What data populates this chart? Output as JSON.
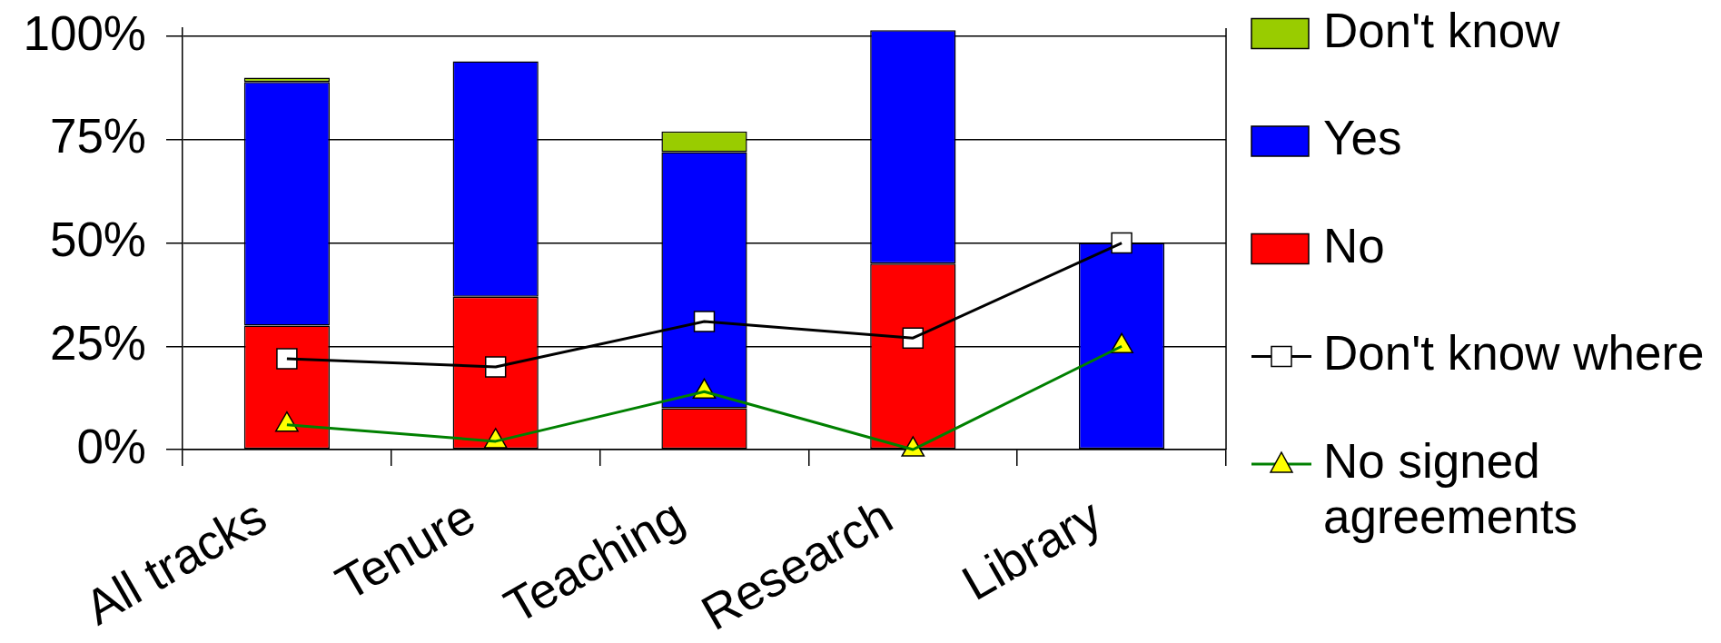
{
  "chart_data": {
    "type": "bar",
    "stacked": true,
    "categories": [
      "All tracks",
      "Tenure",
      "Teaching",
      "Research",
      "Library"
    ],
    "series": [
      {
        "name": "No",
        "color": "#ff0000",
        "values": [
          30,
          37,
          10,
          45,
          0
        ]
      },
      {
        "name": "Yes",
        "color": "#0000ff",
        "values": [
          59,
          57,
          62,
          56.5,
          50
        ]
      },
      {
        "name": "Don't know",
        "color": "#99cc00",
        "values": [
          1,
          0,
          5,
          0,
          0
        ]
      },
      {
        "name": "Don't know where",
        "type": "line",
        "color": "#000000",
        "marker": "square",
        "values": [
          22,
          20,
          31,
          27,
          50
        ]
      },
      {
        "name": "No signed agreements",
        "type": "line",
        "color": "#008000",
        "marker": "triangle",
        "values": [
          6,
          2,
          14,
          0,
          25
        ]
      }
    ],
    "ylim": [
      0,
      102
    ],
    "yticks": [
      {
        "value": 0,
        "label": "0%"
      },
      {
        "value": 25,
        "label": "25%"
      },
      {
        "value": 50,
        "label": "50%"
      },
      {
        "value": 75,
        "label": "75%"
      },
      {
        "value": 100,
        "label": "100%"
      }
    ],
    "grid": "y",
    "legend": "right"
  }
}
